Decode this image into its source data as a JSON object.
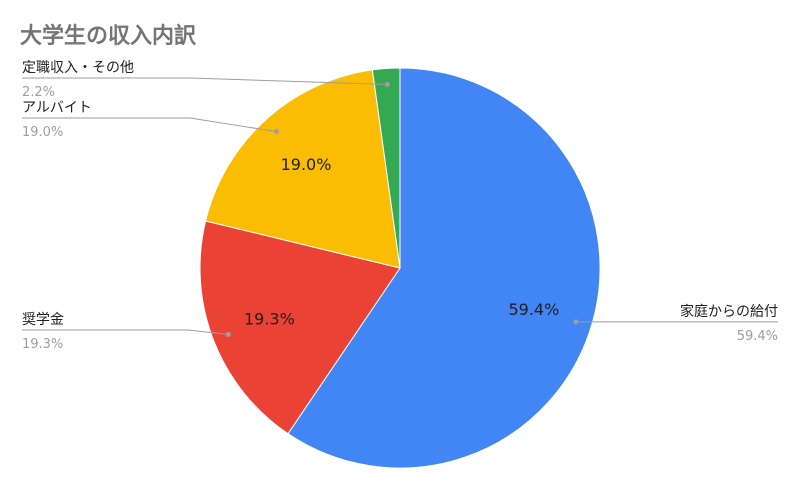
{
  "chart_data": {
    "type": "pie",
    "title": "大学生の収入内訳",
    "start_angle_deg": 0,
    "direction": "clockwise",
    "slices": [
      {
        "label": "家庭からの給付",
        "value": 59.4,
        "display": "59.4%",
        "color": "#4285f4",
        "inside_label": "59.4%",
        "legend_side": "right"
      },
      {
        "label": "奨学金",
        "value": 19.3,
        "display": "19.3%",
        "color": "#ea4335",
        "inside_label": "19.3%",
        "legend_side": "left"
      },
      {
        "label": "アルバイト",
        "value": 19.0,
        "display": "19.0%",
        "color": "#fbbc04",
        "inside_label": "19.0%",
        "legend_side": "left"
      },
      {
        "label": "定職収入・その他",
        "value": 2.2,
        "display": "2.2%",
        "color": "#34a853",
        "inside_label": "",
        "legend_side": "left"
      }
    ]
  }
}
